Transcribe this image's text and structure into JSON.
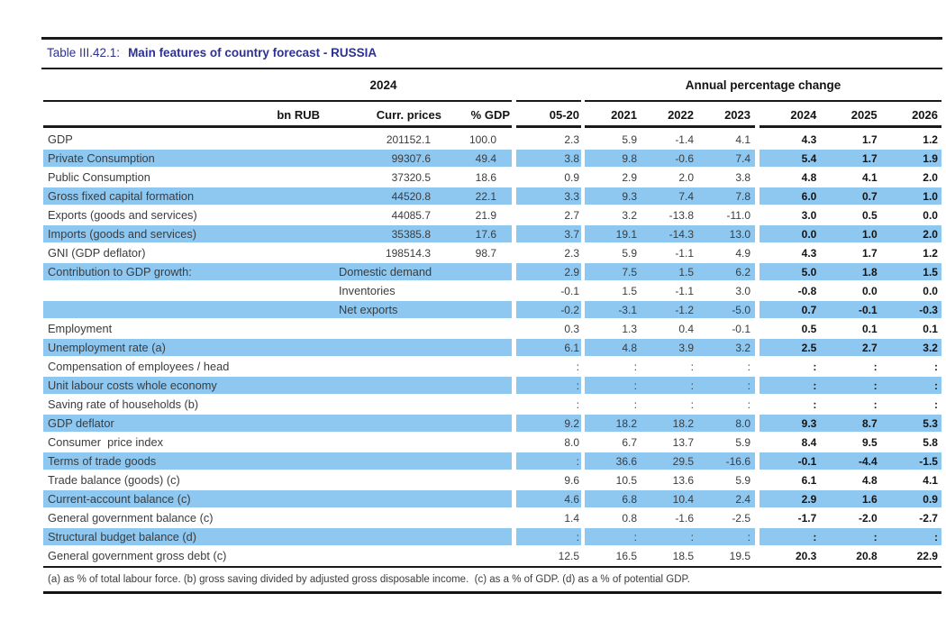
{
  "title": {
    "prefix": "Table III.42.1:",
    "main": "Main features of country forecast - RUSSIA"
  },
  "table": {
    "group_headers": {
      "year": "2024",
      "apc": "Annual percentage change"
    },
    "columns": [
      "bn RUB",
      "Curr. prices",
      "% GDP",
      "05-20",
      "2021",
      "2022",
      "2023",
      "2024",
      "2025",
      "2026"
    ],
    "rows": [
      {
        "label": "GDP",
        "sub": "",
        "cp": "201152.1",
        "gdp": "100.0",
        "v": [
          "2.3",
          "5.9",
          "-1.4",
          "4.1",
          "4.3",
          "1.7",
          "1.2"
        ],
        "hl": false
      },
      {
        "label": "Private Consumption",
        "sub": "",
        "cp": "99307.6",
        "gdp": "49.4",
        "v": [
          "3.8",
          "9.8",
          "-0.6",
          "7.4",
          "5.4",
          "1.7",
          "1.9"
        ],
        "hl": true
      },
      {
        "label": "Public Consumption",
        "sub": "",
        "cp": "37320.5",
        "gdp": "18.6",
        "v": [
          "0.9",
          "2.9",
          "2.0",
          "3.8",
          "4.8",
          "4.1",
          "2.0"
        ],
        "hl": false
      },
      {
        "label": "Gross fixed capital formation",
        "sub": "",
        "cp": "44520.8",
        "gdp": "22.1",
        "v": [
          "3.3",
          "9.3",
          "7.4",
          "7.8",
          "6.0",
          "0.7",
          "1.0"
        ],
        "hl": true
      },
      {
        "label": "Exports (goods and services)",
        "sub": "",
        "cp": "44085.7",
        "gdp": "21.9",
        "v": [
          "2.7",
          "3.2",
          "-13.8",
          "-11.0",
          "3.0",
          "0.5",
          "0.0"
        ],
        "hl": false
      },
      {
        "label": "Imports (goods and services)",
        "sub": "",
        "cp": "35385.8",
        "gdp": "17.6",
        "v": [
          "3.7",
          "19.1",
          "-14.3",
          "13.0",
          "0.0",
          "1.0",
          "2.0"
        ],
        "hl": true
      },
      {
        "label": "GNI (GDP deflator)",
        "sub": "",
        "cp": "198514.3",
        "gdp": "98.7",
        "v": [
          "2.3",
          "5.9",
          "-1.1",
          "4.9",
          "4.3",
          "1.7",
          "1.2"
        ],
        "hl": false
      },
      {
        "label": "Contribution to GDP growth:",
        "sub": "Domestic demand",
        "cp": "",
        "gdp": "",
        "v": [
          "2.9",
          "7.5",
          "1.5",
          "6.2",
          "5.0",
          "1.8",
          "1.5"
        ],
        "hl": true
      },
      {
        "label": "",
        "sub": "Inventories",
        "cp": "",
        "gdp": "",
        "v": [
          "-0.1",
          "1.5",
          "-1.1",
          "3.0",
          "-0.8",
          "0.0",
          "0.0"
        ],
        "hl": false
      },
      {
        "label": "",
        "sub": "Net exports",
        "cp": "",
        "gdp": "",
        "v": [
          "-0.2",
          "-3.1",
          "-1.2",
          "-5.0",
          "0.7",
          "-0.1",
          "-0.3"
        ],
        "hl": true
      },
      {
        "label": "Employment",
        "sub": "",
        "cp": "",
        "gdp": "",
        "v": [
          "0.3",
          "1.3",
          "0.4",
          "-0.1",
          "0.5",
          "0.1",
          "0.1"
        ],
        "hl": false
      },
      {
        "label": "Unemployment rate (a)",
        "sub": "",
        "cp": "",
        "gdp": "",
        "v": [
          "6.1",
          "4.8",
          "3.9",
          "3.2",
          "2.5",
          "2.7",
          "3.2"
        ],
        "hl": true
      },
      {
        "label": "Compensation of employees / head",
        "sub": "",
        "cp": "",
        "gdp": "",
        "v": [
          ":",
          ":",
          ":",
          ":",
          ":",
          ":",
          ":"
        ],
        "hl": false
      },
      {
        "label": "Unit labour costs whole economy",
        "sub": "",
        "cp": "",
        "gdp": "",
        "v": [
          ":",
          ":",
          ":",
          ":",
          ":",
          ":",
          ":"
        ],
        "hl": true
      },
      {
        "label": "Saving rate of households (b)",
        "sub": "",
        "cp": "",
        "gdp": "",
        "v": [
          ":",
          ":",
          ":",
          ":",
          ":",
          ":",
          ":"
        ],
        "hl": false
      },
      {
        "label": "GDP deflator",
        "sub": "",
        "cp": "",
        "gdp": "",
        "v": [
          "9.2",
          "18.2",
          "18.2",
          "8.0",
          "9.3",
          "8.7",
          "5.3"
        ],
        "hl": true
      },
      {
        "label": "Consumer  price index",
        "sub": "",
        "cp": "",
        "gdp": "",
        "v": [
          "8.0",
          "6.7",
          "13.7",
          "5.9",
          "8.4",
          "9.5",
          "5.8"
        ],
        "hl": false
      },
      {
        "label": "Terms of trade goods",
        "sub": "",
        "cp": "",
        "gdp": "",
        "v": [
          ":",
          "36.6",
          "29.5",
          "-16.6",
          "-0.1",
          "-4.4",
          "-1.5"
        ],
        "hl": true
      },
      {
        "label": "Trade balance (goods) (c)",
        "sub": "",
        "cp": "",
        "gdp": "",
        "v": [
          "9.6",
          "10.5",
          "13.6",
          "5.9",
          "6.1",
          "4.8",
          "4.1"
        ],
        "hl": false
      },
      {
        "label": "Current-account balance (c)",
        "sub": "",
        "cp": "",
        "gdp": "",
        "v": [
          "4.6",
          "6.8",
          "10.4",
          "2.4",
          "2.9",
          "1.6",
          "0.9"
        ],
        "hl": true
      },
      {
        "label": "General government balance (c)",
        "sub": "",
        "cp": "",
        "gdp": "",
        "v": [
          "1.4",
          "0.8",
          "-1.6",
          "-2.5",
          "-1.7",
          "-2.0",
          "-2.7"
        ],
        "hl": false
      },
      {
        "label": "Structural budget balance (d)",
        "sub": "",
        "cp": "",
        "gdp": "",
        "v": [
          ":",
          ":",
          ":",
          ":",
          ":",
          ":",
          ":"
        ],
        "hl": true
      },
      {
        "label": "General government gross debt (c)",
        "sub": "",
        "cp": "",
        "gdp": "",
        "v": [
          "12.5",
          "16.5",
          "18.5",
          "19.5",
          "20.3",
          "20.8",
          "22.9"
        ],
        "hl": false
      }
    ]
  },
  "footnote": "(a) as % of total labour force. (b) gross saving divided by adjusted gross disposable income.  (c) as a % of GDP. (d) as a % of potential GDP.",
  "colors": {
    "highlight": "#8ec7f0",
    "title_navy": "#2d3191",
    "rule": "#1a1a1a"
  }
}
